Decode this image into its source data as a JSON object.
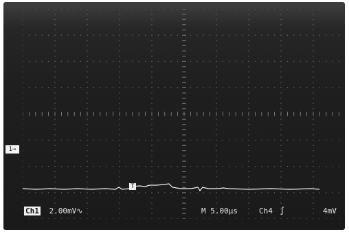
{
  "channel_marker": "1→",
  "trigger_marker": "T",
  "readout": {
    "channel_badge": "Ch1",
    "channel_scale": "2.00mV∿",
    "timebase": "M 5.00µs",
    "trigger_source": "Ch4",
    "trigger_slope": "∫",
    "trigger_level": "4mV"
  },
  "colors": {
    "screen": "#1a1a1a",
    "grid": "#8a8a8a",
    "trace": "#f5f5f5"
  }
}
